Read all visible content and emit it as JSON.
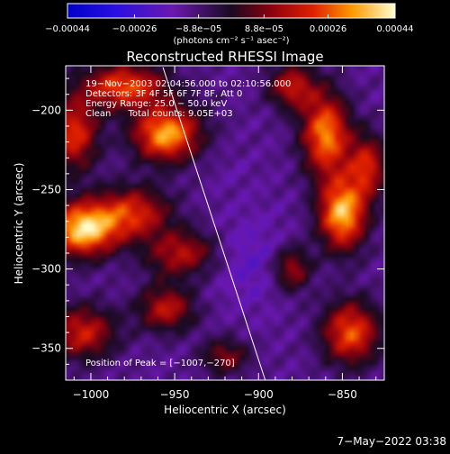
{
  "chart_data": {
    "type": "heatmap",
    "title": "Reconstructed RHESSI Image",
    "xlabel": "Heliocentric X (arcsec)",
    "ylabel": "Heliocentric Y (arcsec)",
    "xlim": [
      -1015,
      -825
    ],
    "ylim": [
      -370,
      -172
    ],
    "x_ticks": [
      -1000,
      -950,
      -900,
      -850
    ],
    "y_ticks": [
      -200,
      -250,
      -300,
      -350
    ],
    "x_tick_labels": [
      "−1000",
      "−950",
      "−900",
      "−850"
    ],
    "y_tick_labels": [
      "−200",
      "−250",
      "−300",
      "−350"
    ],
    "colorbar": {
      "min": -0.00044,
      "max": 0.00044,
      "tick_values": [
        -0.00044,
        -0.00026,
        -8.8e-05,
        8.8e-05,
        0.00026,
        0.00044
      ],
      "tick_labels": [
        "−0.00044",
        "−0.00026",
        "−8.8e−05",
        "8.8e−05",
        "0.00026",
        "0.00044"
      ],
      "unit_label": "(photons cm⁻² s⁻¹ asec⁻²)"
    },
    "info_lines": [
      "19−Nov−2003 02:04:56.000 to 02:10:56.000",
      "Detectors: 3F 4F 5F 6F 7F 8F, Att 0",
      "Energy Range: 25.0 − 50.0 keV",
      "Clean      Total counts: 9.05E+03"
    ],
    "peak_label": "Position of Peak = [−1007,−270]",
    "peak": [
      -1007,
      -270
    ],
    "limb_line": {
      "x1": -957,
      "y1": -173,
      "x2": -896,
      "y2": -370
    },
    "hot_spots": [
      {
        "x": -1005,
        "y": -275,
        "sx": 14,
        "sy": 12,
        "v": 0.00044
      },
      {
        "x": -955,
        "y": -215,
        "sx": 14,
        "sy": 12,
        "v": 0.0004
      },
      {
        "x": -980,
        "y": -185,
        "sx": 18,
        "sy": 10,
        "v": 0.0003
      },
      {
        "x": -1010,
        "y": -215,
        "sx": 10,
        "sy": 16,
        "v": 0.00026
      },
      {
        "x": -975,
        "y": -265,
        "sx": 16,
        "sy": 12,
        "v": 0.00024
      },
      {
        "x": -945,
        "y": -290,
        "sx": 14,
        "sy": 10,
        "v": 0.00018
      },
      {
        "x": -955,
        "y": -325,
        "sx": 12,
        "sy": 10,
        "v": 0.0002
      },
      {
        "x": -1005,
        "y": -340,
        "sx": 14,
        "sy": 12,
        "v": 0.00022
      },
      {
        "x": -880,
        "y": -185,
        "sx": 10,
        "sy": 10,
        "v": 0.0002
      },
      {
        "x": -860,
        "y": -215,
        "sx": 10,
        "sy": 18,
        "v": 0.00036
      },
      {
        "x": -850,
        "y": -265,
        "sx": 10,
        "sy": 16,
        "v": 0.00042
      },
      {
        "x": -835,
        "y": -235,
        "sx": 8,
        "sy": 14,
        "v": 0.00022
      },
      {
        "x": -845,
        "y": -340,
        "sx": 12,
        "sy": 14,
        "v": 0.0003
      },
      {
        "x": -880,
        "y": -300,
        "sx": 8,
        "sy": 10,
        "v": 0.00016
      },
      {
        "x": -920,
        "y": -355,
        "sx": 10,
        "sy": 8,
        "v": 0.00012
      },
      {
        "x": -915,
        "y": -240,
        "sx": 8,
        "sy": 8,
        "v": -0.00014
      },
      {
        "x": -905,
        "y": -295,
        "sx": 16,
        "sy": 20,
        "v": -0.0002
      },
      {
        "x": -930,
        "y": -200,
        "sx": 10,
        "sy": 10,
        "v": -0.0001
      },
      {
        "x": -960,
        "y": -300,
        "sx": 8,
        "sy": 8,
        "v": -8e-05
      }
    ]
  },
  "footer_timestamp": "7−May−2022 03:38"
}
